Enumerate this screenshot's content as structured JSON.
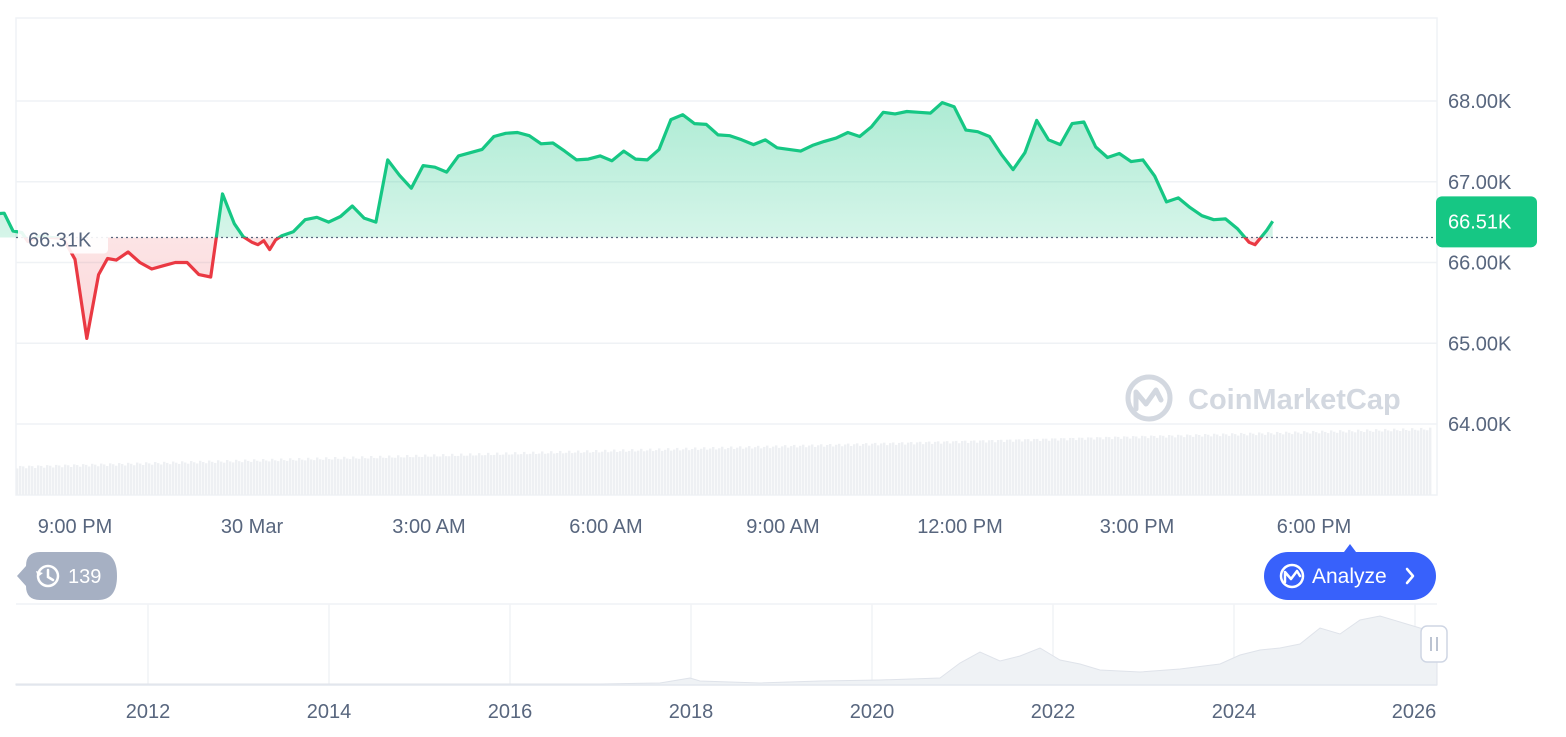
{
  "watermark": "CoinMarketCap",
  "history_count": "139",
  "analyze_label": "Analyze",
  "colors": {
    "up": "#16c784",
    "down": "#ea3943",
    "accent": "#3861fb",
    "grid": "#eff2f5",
    "axis_text": "#58667e",
    "badge_gray": "#a6b0c3"
  },
  "chart_data": {
    "type": "area",
    "baseline": {
      "value": 66310,
      "label": "66.31K"
    },
    "current": {
      "value": 66510,
      "label": "66.51K"
    },
    "ylim": [
      63000,
      69000
    ],
    "yticks": [
      {
        "value": 68000,
        "label": "68.00K"
      },
      {
        "value": 67000,
        "label": "67.00K"
      },
      {
        "value": 66000,
        "label": "66.00K"
      },
      {
        "value": 65000,
        "label": "65.00K"
      },
      {
        "value": 64000,
        "label": "64.00K"
      }
    ],
    "xlim": [
      -3.9,
      20.3
    ],
    "xticks": [
      {
        "value": 0,
        "label": "9:00 PM"
      },
      {
        "value": 3,
        "label": "30 Mar"
      },
      {
        "value": 6,
        "label": "3:00 AM"
      },
      {
        "value": 9,
        "label": "6:00 AM"
      },
      {
        "value": 12,
        "label": "9:00 AM"
      },
      {
        "value": 15,
        "label": "12:00 PM"
      },
      {
        "value": 18,
        "label": "3:00 PM"
      },
      {
        "value": 21,
        "label": "6:00 PM"
      }
    ],
    "x_unit": "hours",
    "series": [
      {
        "x": [
          -3.9,
          -3.7,
          -3.6,
          -3.5,
          -3.4,
          -3.3,
          -3.1,
          -2.9,
          -2.7,
          -2.5,
          -2.3,
          -2.1,
          -1.9,
          -1.7,
          -1.5,
          -1.4,
          -1.2,
          -1.05,
          -0.9,
          -0.8,
          -0.6,
          -0.4,
          -0.2,
          0,
          0.2,
          0.4,
          0.55,
          0.7,
          0.9,
          1.1,
          1.3,
          1.5,
          1.7,
          1.9,
          2.1,
          2.3,
          2.5,
          2.7,
          2.85,
          3.0,
          3.1,
          3.2,
          3.3,
          3.4,
          3.5,
          3.7,
          3.9,
          4.1,
          4.3,
          4.5,
          4.7,
          4.9,
          5.1,
          5.3,
          5.5,
          5.7,
          5.9,
          6.1,
          6.3,
          6.5,
          6.7,
          6.9,
          7.1,
          7.3,
          7.5,
          7.7,
          7.9,
          8.1,
          8.3,
          8.5,
          8.7,
          8.9,
          9.1,
          9.3,
          9.5,
          9.7,
          9.9,
          10.1,
          10.3,
          10.5,
          10.7,
          10.9,
          11.1,
          11.3,
          11.5,
          11.7,
          11.9,
          12.1,
          12.3,
          12.5,
          12.7,
          12.9,
          13.1,
          13.3,
          13.5,
          13.7,
          13.9,
          14.1,
          14.3,
          14.5,
          14.7,
          14.9,
          15.1,
          15.3,
          15.5,
          15.7,
          15.9,
          16.1,
          16.3,
          16.5,
          16.7,
          16.9,
          17.1,
          17.3,
          17.5,
          17.7,
          17.9,
          18.1,
          18.3,
          18.5,
          18.7,
          18.9,
          19.1,
          19.3,
          19.5,
          19.7,
          19.9,
          20.0,
          20.1,
          20.2,
          20.3
        ],
        "y": [
          66310,
          66360,
          66550,
          66560,
          66550,
          66520,
          66500,
          66480,
          66480,
          66440,
          66430,
          66400,
          66520,
          66580,
          66560,
          66600,
          66610,
          66390,
          66370,
          66260,
          66330,
          66310,
          66300,
          66040,
          65060,
          65850,
          66050,
          66030,
          66130,
          66000,
          65920,
          65960,
          66000,
          66000,
          65850,
          65820,
          66850,
          66480,
          66320,
          66250,
          66220,
          66270,
          66160,
          66280,
          66330,
          66380,
          66530,
          66560,
          66500,
          66570,
          66700,
          66550,
          66500,
          67270,
          67080,
          66920,
          67200,
          67180,
          67120,
          67320,
          67360,
          67400,
          67560,
          67600,
          67610,
          67570,
          67470,
          67480,
          67380,
          67270,
          67280,
          67320,
          67260,
          67380,
          67280,
          67270,
          67400,
          67770,
          67830,
          67720,
          67710,
          67580,
          67570,
          67520,
          67460,
          67520,
          67420,
          67400,
          67380,
          67450,
          67500,
          67540,
          67610,
          67560,
          67680,
          67860,
          67840,
          67870,
          67860,
          67850,
          67980,
          67930,
          67640,
          67620,
          67560,
          67340,
          67150,
          67360,
          67760,
          67520,
          67460,
          67720,
          67740,
          67430,
          67300,
          67350,
          67250,
          67270,
          67070,
          66750,
          66800,
          66680,
          66580,
          66530,
          66540,
          66420,
          66250,
          66220,
          66310,
          66400,
          66510
        ]
      }
    ],
    "navigator": {
      "xticks": [
        "2012",
        "2014",
        "2016",
        "2018",
        "2020",
        "2022",
        "2024",
        "2026"
      ]
    }
  }
}
